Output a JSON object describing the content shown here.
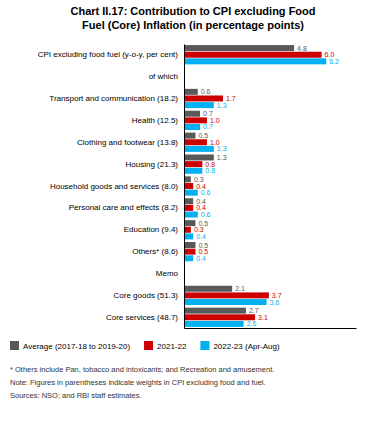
{
  "chart_data": {
    "type": "bar",
    "orientation": "horizontal",
    "title": "Chart II.17: Contribution to CPI excluding Food\nFuel (Core) Inflation (in percentage points)",
    "categories": [
      "CPI excluding food fuel (y-o-y, per cent)",
      "of which",
      "Transport and communication (18.2)",
      "Health (12.5)",
      "Clothing and footwear (13.8)",
      "Housing (21.3)",
      "Household goods and services (8.0)",
      "Personal care and effects (8.2)",
      "Education (9.4)",
      "Others* (8.6)",
      "Memo",
      "Core goods (51.3)",
      "Core services (48.7)"
    ],
    "series": [
      {
        "name": "Average (2017-18 to 2019-20)",
        "color": "#595959",
        "values": [
          4.8,
          null,
          0.6,
          0.7,
          0.5,
          1.3,
          0.3,
          0.4,
          0.5,
          0.5,
          null,
          2.1,
          2.7
        ],
        "value_labels": [
          "4.8",
          null,
          "0.6",
          "0.7",
          "0.5",
          "1.3",
          "0.3",
          "0.4",
          "0.5",
          "0.5",
          null,
          "2.1",
          "2.7"
        ]
      },
      {
        "name": "2021-22",
        "color": "#cc0000",
        "values": [
          6.0,
          null,
          1.7,
          1.0,
          1.0,
          0.8,
          0.4,
          0.4,
          0.3,
          0.5,
          null,
          3.7,
          3.1
        ],
        "value_labels": [
          "6.0",
          null,
          "1.7",
          "1.0",
          "1.0",
          "0.8",
          "0.4",
          "0.4",
          "0.3",
          "0.5",
          null,
          "3.7",
          "3.1"
        ]
      },
      {
        "name": "2022-23 (Apr-Aug)",
        "color": "#00b0f0",
        "values": [
          6.2,
          null,
          1.3,
          0.7,
          1.3,
          0.8,
          0.6,
          0.6,
          0.4,
          0.4,
          null,
          3.6,
          2.6
        ],
        "value_labels": [
          "6.2",
          null,
          "1.3",
          "0.7",
          "1.3",
          "0.8",
          "0.6",
          "0.6",
          "0.4",
          "0.4",
          null,
          "3.6",
          "2.6"
        ]
      }
    ],
    "xlim": [
      0,
      7.5
    ],
    "tick_labels": "y",
    "grid": false,
    "data_labels": true,
    "annotations": [
      "* Others include Pan, tobacco and intoxicants; and Recreation and amusement.",
      "Note: Figures in parentheses indicate weights in CPI excluding food and fuel.",
      "Sources: NSO; and RBI staff estimates."
    ]
  }
}
